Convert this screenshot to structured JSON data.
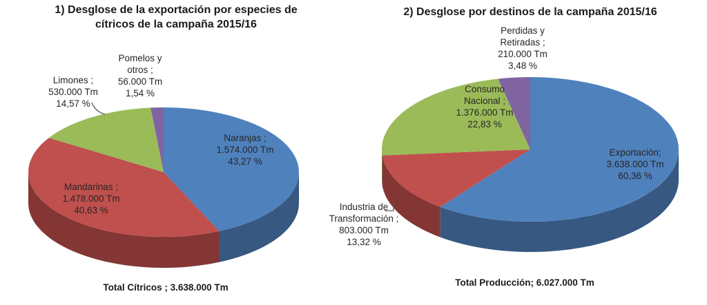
{
  "chart_data": [
    {
      "type": "pie",
      "pie_style": "3d",
      "title": "1) Desglose de la exportación por especies de cítricos de la campaña 2015/16",
      "unit": "Tm",
      "start_angle_deg": 0,
      "direction": "clockwise",
      "legend_position": "none",
      "total_label": "Total Cítricos ; 3.638.000 Tm",
      "total_value": 3638000,
      "slices": [
        {
          "category": "Naranjas",
          "value": 1574000,
          "pct": 43.27,
          "color": "#4f81bd",
          "label_name": "Naranjas ;",
          "label_value": "1.574.000 Tm",
          "label_pct": "43,27 %"
        },
        {
          "category": "Mandarinas",
          "value": 1478000,
          "pct": 40.63,
          "color": "#c0504d",
          "label_name": "Mandarinas ;",
          "label_value": "1.478.000 Tm",
          "label_pct": "40,63 %"
        },
        {
          "category": "Limones",
          "value": 530000,
          "pct": 14.57,
          "color": "#9bbb59",
          "label_name": "Limones ;",
          "label_value": "530.000 Tm",
          "label_pct": "14,57 %"
        },
        {
          "category": "Pomelos y otros",
          "value": 56000,
          "pct": 1.54,
          "color": "#8064a2",
          "label_name": "Pomelos y otros ;",
          "label_value": "56.000 Tm",
          "label_pct": "1,54 %"
        }
      ]
    },
    {
      "type": "pie",
      "pie_style": "3d",
      "title": "2) Desglose por destinos de la campaña 2015/16",
      "unit": "Tm",
      "start_angle_deg": 0,
      "direction": "clockwise",
      "legend_position": "none",
      "total_label": "Total Producción; 6.027.000 Tm",
      "total_value": 6027000,
      "slices": [
        {
          "category": "Exportación",
          "value": 3638000,
          "pct": 60.36,
          "color": "#4f81bd",
          "label_name": "Exportación;",
          "label_value": "3.638.000 Tm",
          "label_pct": "60,36 %"
        },
        {
          "category": "Industria de Transformación",
          "value": 803000,
          "pct": 13.32,
          "color": "#c0504d",
          "label_name": "Industria de Transformación ;",
          "label_value": "803.000 Tm",
          "label_pct": "13,32 %"
        },
        {
          "category": "Consumo Nacional",
          "value": 1376000,
          "pct": 22.83,
          "color": "#9bbb59",
          "label_name": "Consumo Nacional ;",
          "label_value": "1.376.000 Tm",
          "label_pct": "22,83 %"
        },
        {
          "category": "Perdidas y Retiradas",
          "value": 210000,
          "pct": 3.48,
          "color": "#8064a2",
          "label_name": "Perdidas y Retiradas ;",
          "label_value": "210.000 Tm",
          "label_pct": "3,48 %"
        }
      ]
    }
  ]
}
